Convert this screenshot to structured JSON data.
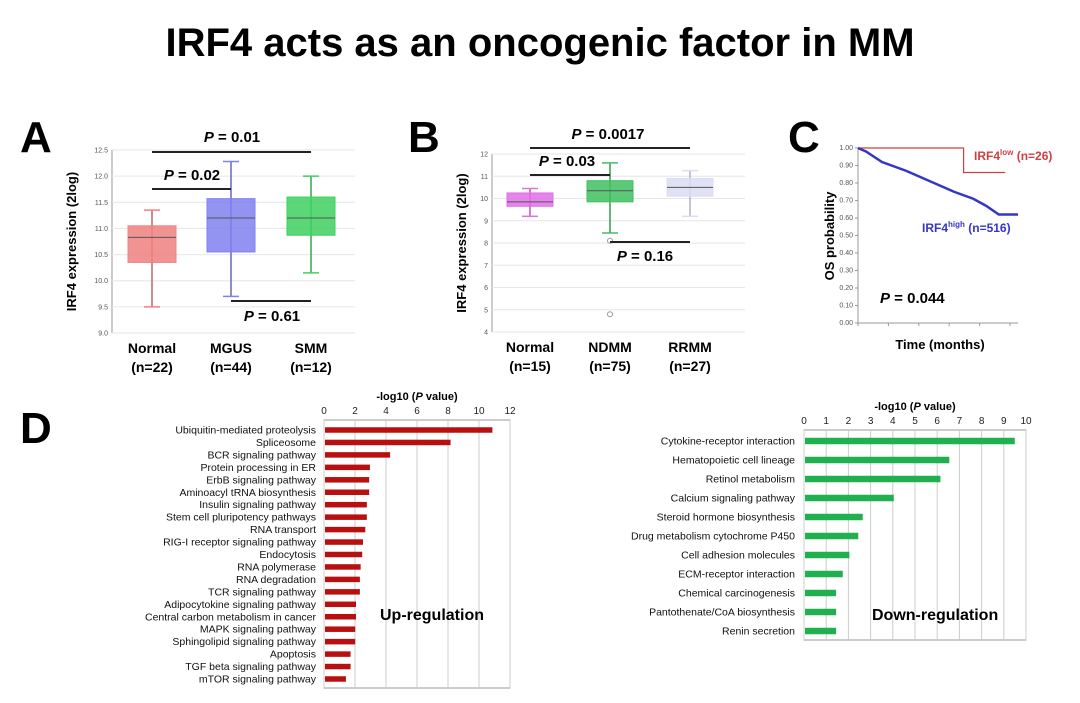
{
  "title": "IRF4 acts as an oncogenic factor in MM",
  "panel_labels": [
    "A",
    "B",
    "C",
    "D"
  ],
  "chart_data": [
    {
      "panel": "A",
      "type": "box",
      "ylabel": "IRF4 expression (2log)",
      "ylim": [
        9.0,
        12.5
      ],
      "yticks": [
        "9.0",
        "9.5",
        "10.0",
        "10.5",
        "11.0",
        "11.5",
        "12.0",
        "12.5"
      ],
      "grid": true,
      "categories": [
        {
          "name": "Normal",
          "n": "(n=22)",
          "min": 9.5,
          "q1": 10.35,
          "median": 10.83,
          "q3": 11.05,
          "max": 11.35,
          "color": "#f08080"
        },
        {
          "name": "MGUS",
          "n": "(n=44)",
          "min": 9.7,
          "q1": 10.55,
          "median": 11.2,
          "q3": 11.57,
          "max": 12.28,
          "color": "#8080f0"
        },
        {
          "name": "SMM",
          "n": "(n=12)",
          "min": 10.15,
          "q1": 10.87,
          "median": 11.2,
          "q3": 11.6,
          "max": 12.0,
          "color": "#40d060"
        }
      ],
      "comparisons": [
        {
          "label": "P = 0.01",
          "from": 0,
          "to": 2
        },
        {
          "label": "P = 0.02",
          "from": 0,
          "to": 1
        },
        {
          "label": "P = 0.61",
          "from": 1,
          "to": 2
        }
      ]
    },
    {
      "panel": "B",
      "type": "box",
      "ylabel": "IRF4 expression (2log)",
      "ylim": [
        4,
        12
      ],
      "yticks": [
        "4",
        "5",
        "6",
        "7",
        "8",
        "9",
        "10",
        "11",
        "12"
      ],
      "grid": true,
      "categories": [
        {
          "name": "Normal",
          "n": "(n=15)",
          "min": 9.2,
          "q1": 9.65,
          "median": 9.85,
          "q3": 10.25,
          "max": 10.45,
          "color": "#e070e8"
        },
        {
          "name": "NDMM",
          "n": "(n=75)",
          "min": 8.45,
          "q1": 9.85,
          "median": 10.35,
          "q3": 10.8,
          "max": 11.6,
          "outliers": [
            4.8,
            8.1
          ],
          "color": "#40c060"
        },
        {
          "name": "RRMM",
          "n": "(n=27)",
          "min": 9.2,
          "q1": 10.1,
          "median": 10.5,
          "q3": 10.9,
          "max": 11.25,
          "color": "#dcdcf4"
        }
      ],
      "comparisons": [
        {
          "label": "P = 0.0017",
          "from": 0,
          "to": 2
        },
        {
          "label": "P = 0.03",
          "from": 0,
          "to": 1
        },
        {
          "label": "P = 0.16",
          "from": 1,
          "to": 2
        }
      ]
    },
    {
      "panel": "C",
      "type": "line",
      "ylabel": "OS probability",
      "xlabel": "Time (months)",
      "ylim": [
        0,
        1
      ],
      "yticks": [
        "0.00",
        "0.10",
        "0.20",
        "0.30",
        "0.40",
        "0.50",
        "0.60",
        "0.70",
        "0.80",
        "0.90",
        "1.00"
      ],
      "annotation": "P = 0.044",
      "series": [
        {
          "name": "IRF4",
          "sup": "low",
          "n": "(n=26)",
          "color": "#d04040",
          "points": [
            [
              0,
              1.0
            ],
            [
              0.66,
              1.0
            ],
            [
              0.66,
              0.86
            ],
            [
              0.92,
              0.86
            ]
          ]
        },
        {
          "name": "IRF4",
          "sup": "high",
          "n": "(n=516)",
          "color": "#3535c8",
          "points": [
            [
              0,
              1.0
            ],
            [
              0.05,
              0.98
            ],
            [
              0.15,
              0.92
            ],
            [
              0.3,
              0.87
            ],
            [
              0.45,
              0.81
            ],
            [
              0.6,
              0.75
            ],
            [
              0.72,
              0.71
            ],
            [
              0.8,
              0.67
            ],
            [
              0.88,
              0.62
            ],
            [
              1.0,
              0.62
            ]
          ]
        }
      ]
    },
    {
      "panel": "D",
      "type": "bar",
      "orientation": "horizontal",
      "title": "-log10 (P value)",
      "xlim": [
        0,
        12
      ],
      "xticks": [
        "0",
        "2",
        "4",
        "6",
        "8",
        "10",
        "12"
      ],
      "annotation": "Up-regulation",
      "color": "#b81010",
      "categories": [
        "Ubiquitin-mediated proteolysis",
        "Spliceosome",
        "BCR signaling pathway",
        "Protein processing in ER",
        "ErbB signaling pathway",
        "Aminoacyl tRNA  biosynthesis",
        "Insulin signaling pathway",
        "Stem cell pluripotency pathways",
        "RNA transport",
        "RIG-I receptor signaling pathway",
        "Endocytosis",
        "RNA polymerase",
        "RNA degradation",
        "TCR signaling pathway",
        "Adipocytokine signaling pathway",
        "Central carbon metabolism in cancer",
        "MAPK signaling pathway",
        "Sphingolipid signaling pathway",
        "Apoptosis",
        "TGF beta signaling pathway",
        "mTOR signaling pathway"
      ],
      "values": [
        10.8,
        8.1,
        4.2,
        2.9,
        2.85,
        2.85,
        2.7,
        2.7,
        2.6,
        2.45,
        2.4,
        2.3,
        2.25,
        2.25,
        2.0,
        2.0,
        1.95,
        1.95,
        1.65,
        1.65,
        1.35
      ]
    },
    {
      "panel": "D",
      "type": "bar",
      "orientation": "horizontal",
      "title": "-log10 (P value)",
      "xlim": [
        0,
        10
      ],
      "xticks": [
        "0",
        "1",
        "2",
        "3",
        "4",
        "5",
        "6",
        "7",
        "8",
        "9",
        "10"
      ],
      "annotation": "Down-regulation",
      "color": "#20b050",
      "categories": [
        "Cytokine-receptor interaction",
        "Hematopoietic cell lineage",
        "Retinol metabolism",
        "Calcium signaling pathway",
        "Steroid hormone biosynthesis",
        "Drug metabolism cytochrome P450",
        "Cell adhesion molecules",
        "ECM-receptor interaction",
        "Chemical carcinogenesis",
        "Pantothenate/CoA biosynthesis",
        "Renin secretion"
      ],
      "values": [
        9.45,
        6.5,
        6.1,
        4.0,
        2.6,
        2.4,
        2.0,
        1.7,
        1.4,
        1.4,
        1.4
      ]
    }
  ]
}
